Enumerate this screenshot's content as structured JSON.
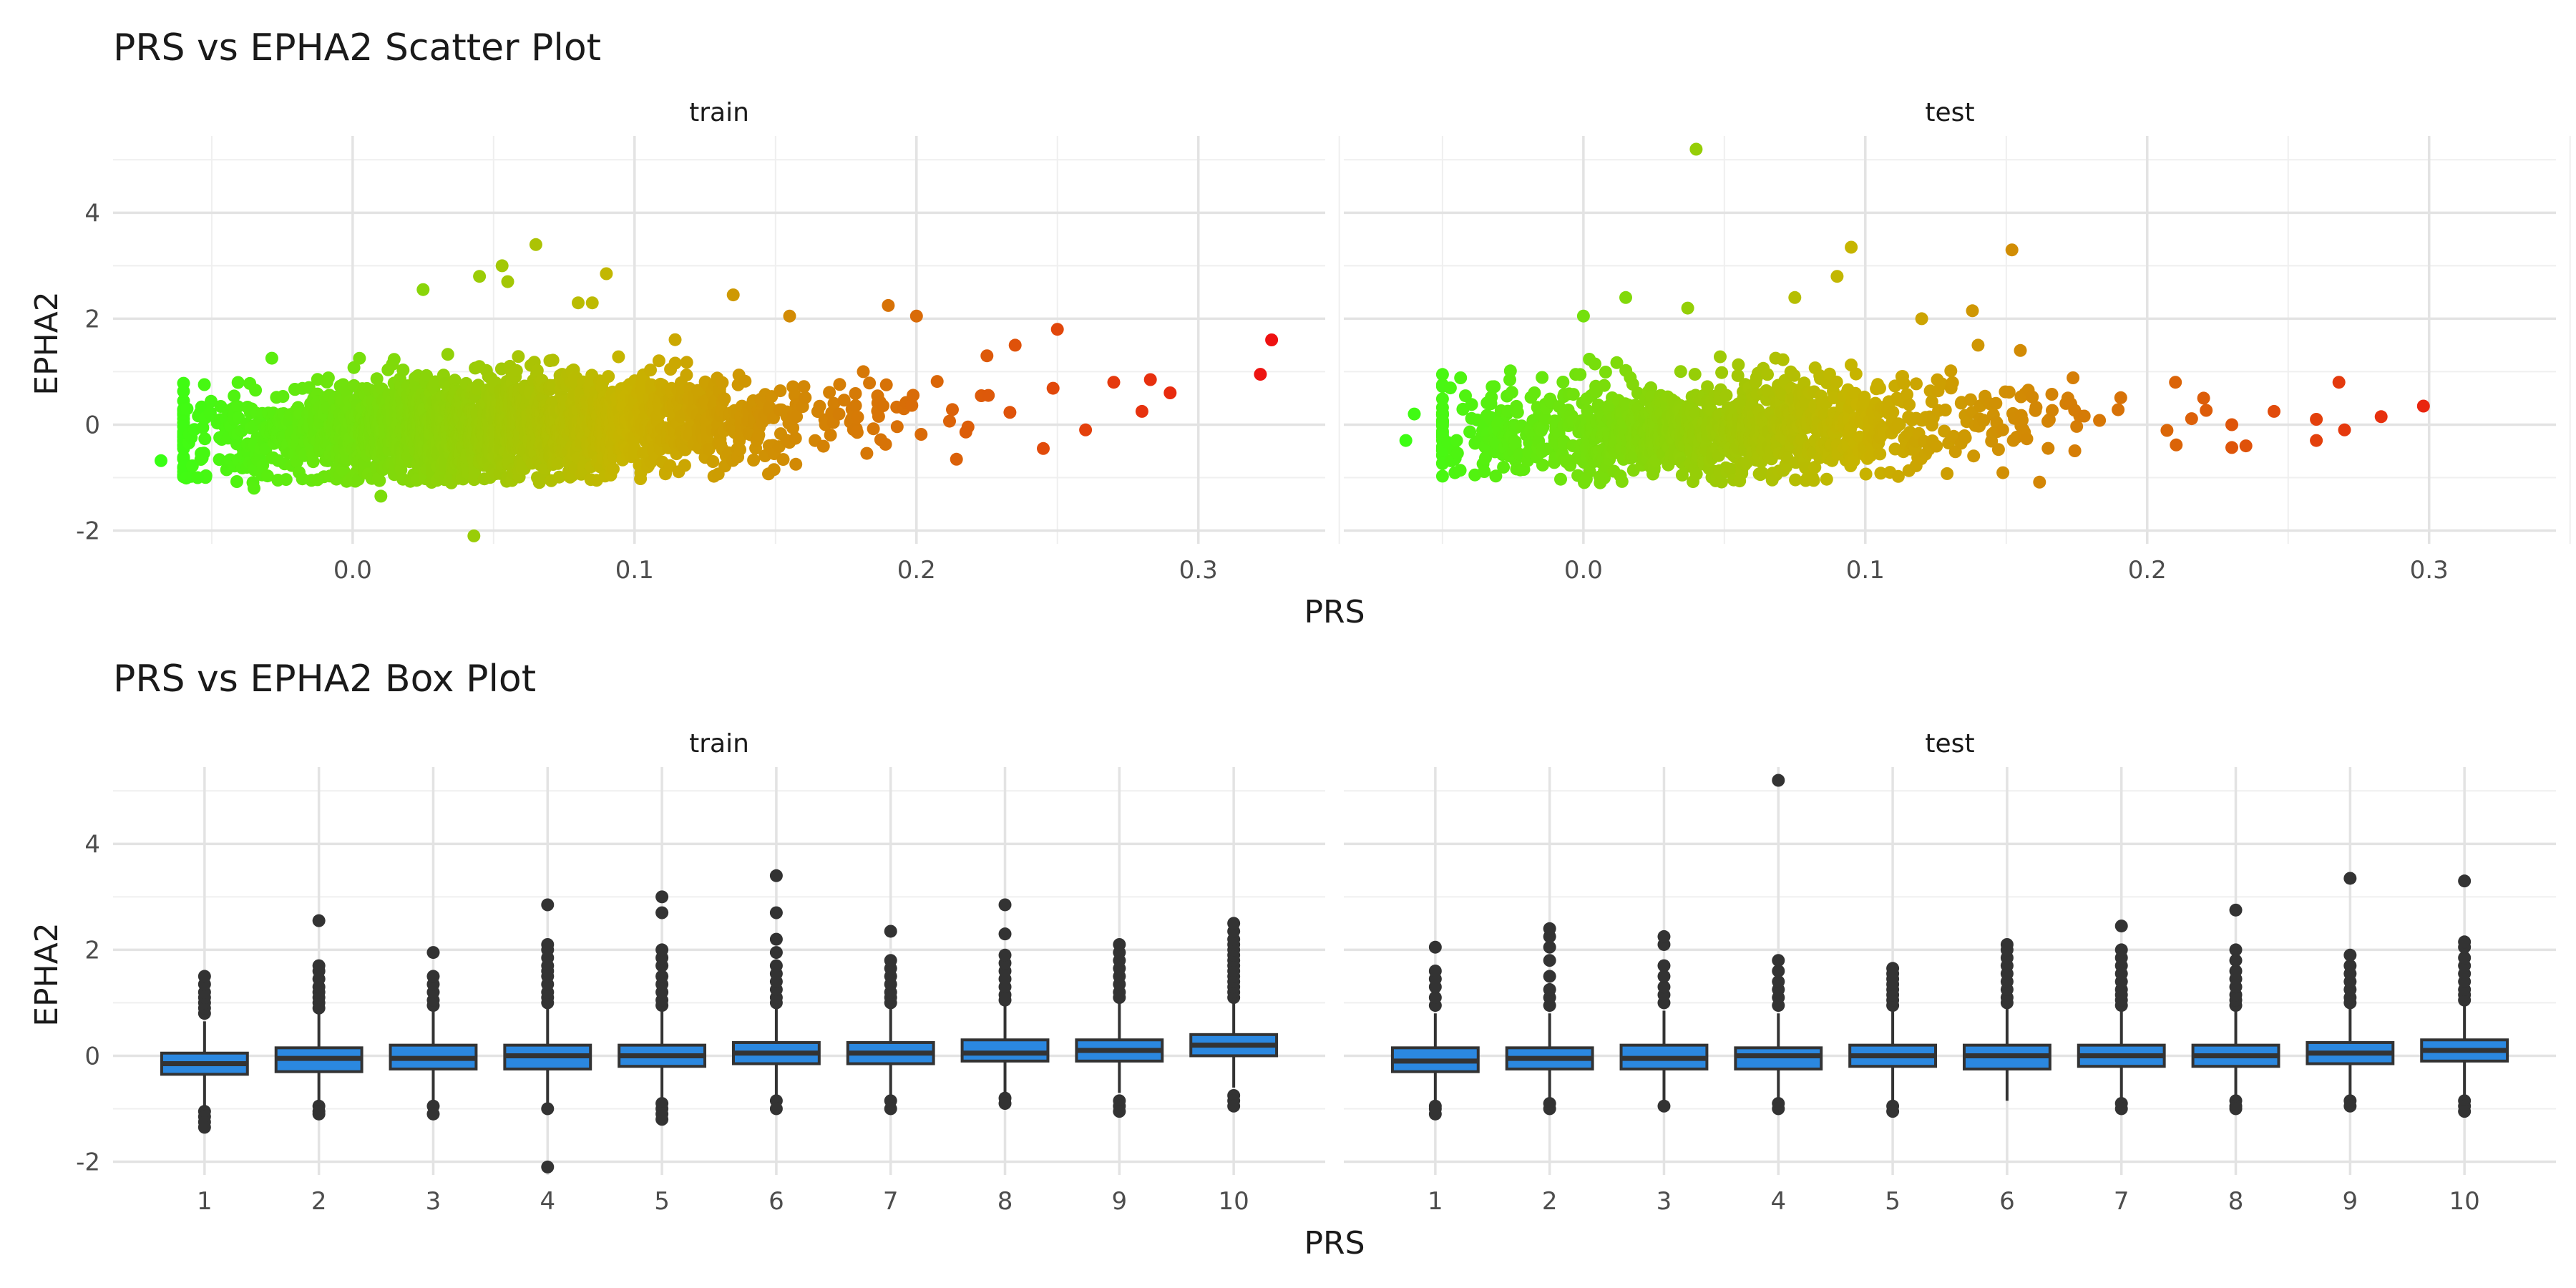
{
  "chart_data": [
    {
      "type": "scatter",
      "title": "PRS vs EPHA2 Scatter Plot",
      "xlabel": "PRS",
      "ylabel": "EPHA2",
      "facets": [
        "train",
        "test"
      ],
      "xlim": [
        -0.085,
        0.345
      ],
      "ylim": [
        -2.25,
        5.45
      ],
      "x_ticks": [
        "0.0",
        "0.1",
        "0.2",
        "0.3"
      ],
      "x_tick_values": [
        0.0,
        0.1,
        0.2,
        0.3
      ],
      "y_ticks": [
        "-2",
        "0",
        "2",
        "4"
      ],
      "y_tick_values": [
        -2,
        0,
        2,
        4
      ],
      "color_scale": {
        "low": "#39FF14",
        "mid": "#C8B400",
        "high": "#EE1111",
        "mapped_to": "PRS"
      },
      "grid": true,
      "legend": "none",
      "panels": {
        "train": {
          "cloud": {
            "n": 2600,
            "x_range": [
              -0.06,
              0.29
            ],
            "y_center_at_x0": -0.1,
            "y_center_slope": 1.4,
            "spread": 0.45
          },
          "points": [
            [
              -0.068,
              -0.68
            ],
            [
              -0.055,
              -1.0
            ],
            [
              -0.035,
              -1.2
            ],
            [
              0.01,
              -1.35
            ],
            [
              0.043,
              -2.1
            ],
            [
              0.025,
              2.55
            ],
            [
              0.045,
              2.8
            ],
            [
              0.053,
              3.0
            ],
            [
              0.055,
              2.7
            ],
            [
              0.065,
              3.4
            ],
            [
              0.08,
              2.3
            ],
            [
              0.085,
              2.3
            ],
            [
              0.09,
              2.85
            ],
            [
              0.135,
              2.45
            ],
            [
              0.155,
              2.05
            ],
            [
              0.19,
              2.25
            ],
            [
              0.2,
              2.05
            ],
            [
              0.225,
              1.3
            ],
            [
              0.235,
              1.5
            ],
            [
              0.25,
              1.8
            ],
            [
              0.245,
              -0.45
            ],
            [
              0.26,
              -0.1
            ],
            [
              0.27,
              0.8
            ],
            [
              0.28,
              0.25
            ],
            [
              0.283,
              0.85
            ],
            [
              0.29,
              0.6
            ],
            [
              0.322,
              0.95
            ],
            [
              0.326,
              1.6
            ]
          ]
        },
        "test": {
          "cloud": {
            "n": 1300,
            "x_range": [
              -0.05,
              0.23
            ],
            "y_center_at_x0": -0.1,
            "y_center_slope": 1.2,
            "spread": 0.45
          },
          "points": [
            [
              -0.06,
              0.2
            ],
            [
              -0.063,
              -0.3
            ],
            [
              -0.045,
              -0.3
            ],
            [
              0.0,
              2.05
            ],
            [
              0.015,
              2.4
            ],
            [
              0.04,
              5.2
            ],
            [
              0.037,
              2.2
            ],
            [
              0.095,
              3.35
            ],
            [
              0.09,
              2.8
            ],
            [
              0.152,
              3.3
            ],
            [
              0.138,
              2.15
            ],
            [
              0.12,
              2.0
            ],
            [
              0.14,
              1.5
            ],
            [
              0.155,
              1.4
            ],
            [
              0.075,
              2.4
            ],
            [
              0.21,
              0.8
            ],
            [
              0.22,
              0.5
            ],
            [
              0.235,
              -0.4
            ],
            [
              0.245,
              0.25
            ],
            [
              0.26,
              0.1
            ],
            [
              0.26,
              -0.3
            ],
            [
              0.268,
              0.8
            ],
            [
              0.27,
              -0.1
            ],
            [
              0.283,
              0.15
            ],
            [
              0.298,
              0.35
            ]
          ]
        }
      }
    },
    {
      "type": "box",
      "title": "PRS vs EPHA2 Box Plot",
      "xlabel": "PRS",
      "ylabel": "EPHA2",
      "facets": [
        "train",
        "test"
      ],
      "categories": [
        "1",
        "2",
        "3",
        "4",
        "5",
        "6",
        "7",
        "8",
        "9",
        "10"
      ],
      "ylim": [
        -2.25,
        5.45
      ],
      "y_ticks": [
        "-2",
        "0",
        "2",
        "4"
      ],
      "y_tick_values": [
        -2,
        0,
        2,
        4
      ],
      "box_fill": "#2B88E0",
      "box_line": "#333333",
      "grid": true,
      "panels": {
        "train": [
          {
            "q1": -0.35,
            "median": -0.15,
            "q3": 0.05,
            "whisker_low": -0.95,
            "whisker_high": 0.65,
            "outliers": [
              0.8,
              0.9,
              1.0,
              1.1,
              1.2,
              1.35,
              1.5,
              -1.05,
              -1.15,
              -1.25,
              -1.35
            ]
          },
          {
            "q1": -0.3,
            "median": -0.05,
            "q3": 0.15,
            "whisker_low": -0.9,
            "whisker_high": 0.8,
            "outliers": [
              0.9,
              1.0,
              1.1,
              1.2,
              1.3,
              1.45,
              1.6,
              1.7,
              2.55,
              -0.95,
              -1.05,
              -1.1
            ]
          },
          {
            "q1": -0.25,
            "median": -0.05,
            "q3": 0.2,
            "whisker_low": -0.9,
            "whisker_high": 0.85,
            "outliers": [
              0.95,
              1.05,
              1.2,
              1.35,
              1.5,
              1.95,
              -0.95,
              -1.1
            ]
          },
          {
            "q1": -0.25,
            "median": 0.0,
            "q3": 0.2,
            "whisker_low": -0.9,
            "whisker_high": 0.9,
            "outliers": [
              1.0,
              1.1,
              1.2,
              1.35,
              1.5,
              1.6,
              1.7,
              1.85,
              2.0,
              2.1,
              2.85,
              -1.0,
              -2.1
            ]
          },
          {
            "q1": -0.2,
            "median": 0.0,
            "q3": 0.2,
            "whisker_low": -0.85,
            "whisker_high": 0.85,
            "outliers": [
              0.95,
              1.05,
              1.2,
              1.35,
              1.5,
              1.7,
              1.85,
              2.0,
              2.7,
              3.0,
              -0.9,
              -1.0,
              -1.1,
              -1.2
            ]
          },
          {
            "q1": -0.15,
            "median": 0.05,
            "q3": 0.25,
            "whisker_low": -0.8,
            "whisker_high": 0.9,
            "outliers": [
              1.0,
              1.1,
              1.25,
              1.4,
              1.55,
              1.7,
              1.95,
              2.2,
              2.7,
              3.4,
              -0.85,
              -1.0
            ]
          },
          {
            "q1": -0.15,
            "median": 0.05,
            "q3": 0.25,
            "whisker_low": -0.8,
            "whisker_high": 0.9,
            "outliers": [
              1.0,
              1.1,
              1.2,
              1.35,
              1.5,
              1.65,
              1.8,
              2.35,
              -0.85,
              -1.0
            ]
          },
          {
            "q1": -0.1,
            "median": 0.05,
            "q3": 0.3,
            "whisker_low": -0.75,
            "whisker_high": 0.95,
            "outliers": [
              1.05,
              1.15,
              1.3,
              1.45,
              1.6,
              1.75,
              1.9,
              2.3,
              2.85,
              -0.8,
              -0.9
            ]
          },
          {
            "q1": -0.1,
            "median": 0.1,
            "q3": 0.3,
            "whisker_low": -0.7,
            "whisker_high": 1.0,
            "outliers": [
              1.1,
              1.2,
              1.35,
              1.5,
              1.65,
              1.8,
              1.95,
              2.1,
              -0.85,
              -0.95,
              -1.05
            ]
          },
          {
            "q1": 0.0,
            "median": 0.2,
            "q3": 0.4,
            "whisker_low": -0.6,
            "whisker_high": 1.0,
            "outliers": [
              1.1,
              1.2,
              1.3,
              1.4,
              1.5,
              1.6,
              1.7,
              1.8,
              1.9,
              2.0,
              2.1,
              2.2,
              2.35,
              2.5,
              -0.75,
              -0.85,
              -0.95
            ]
          }
        ],
        "test": [
          {
            "q1": -0.3,
            "median": -0.1,
            "q3": 0.15,
            "whisker_low": -0.9,
            "whisker_high": 0.8,
            "outliers": [
              0.95,
              1.1,
              1.3,
              1.45,
              1.6,
              2.05,
              -0.95,
              -1.0,
              -1.1
            ]
          },
          {
            "q1": -0.25,
            "median": -0.05,
            "q3": 0.15,
            "whisker_low": -0.85,
            "whisker_high": 0.8,
            "outliers": [
              0.95,
              1.1,
              1.25,
              1.5,
              1.8,
              2.05,
              2.25,
              2.4,
              -0.9,
              -1.0
            ]
          },
          {
            "q1": -0.25,
            "median": -0.05,
            "q3": 0.2,
            "whisker_low": -0.9,
            "whisker_high": 0.85,
            "outliers": [
              1.0,
              1.15,
              1.3,
              1.5,
              1.7,
              2.1,
              2.25,
              -0.95
            ]
          },
          {
            "q1": -0.25,
            "median": 0.0,
            "q3": 0.15,
            "whisker_low": -0.85,
            "whisker_high": 0.8,
            "outliers": [
              0.95,
              1.1,
              1.25,
              1.4,
              1.6,
              1.8,
              5.2,
              -0.9,
              -1.0
            ]
          },
          {
            "q1": -0.2,
            "median": 0.0,
            "q3": 0.2,
            "whisker_low": -0.85,
            "whisker_high": 0.85,
            "outliers": [
              0.95,
              1.05,
              1.15,
              1.25,
              1.35,
              1.45,
              1.55,
              1.65,
              -0.95,
              -1.05
            ]
          },
          {
            "q1": -0.25,
            "median": 0.0,
            "q3": 0.2,
            "whisker_low": -0.85,
            "whisker_high": 0.9,
            "outliers": [
              1.0,
              1.1,
              1.25,
              1.4,
              1.55,
              1.7,
              1.85,
              2.0,
              2.1
            ]
          },
          {
            "q1": -0.2,
            "median": 0.0,
            "q3": 0.2,
            "whisker_low": -0.8,
            "whisker_high": 0.85,
            "outliers": [
              0.95,
              1.05,
              1.15,
              1.25,
              1.4,
              1.55,
              1.7,
              1.85,
              2.0,
              2.45,
              -0.9,
              -1.0
            ]
          },
          {
            "q1": -0.2,
            "median": 0.0,
            "q3": 0.2,
            "whisker_low": -0.8,
            "whisker_high": 0.85,
            "outliers": [
              0.95,
              1.05,
              1.15,
              1.3,
              1.45,
              1.6,
              1.8,
              2.0,
              2.75,
              -0.85,
              -0.95,
              -1.0
            ]
          },
          {
            "q1": -0.15,
            "median": 0.05,
            "q3": 0.25,
            "whisker_low": -0.8,
            "whisker_high": 0.9,
            "outliers": [
              1.0,
              1.1,
              1.25,
              1.4,
              1.55,
              1.7,
              1.9,
              3.35,
              -0.85,
              -0.95
            ]
          },
          {
            "q1": -0.1,
            "median": 0.1,
            "q3": 0.3,
            "whisker_low": -0.75,
            "whisker_high": 0.95,
            "outliers": [
              1.05,
              1.15,
              1.25,
              1.4,
              1.55,
              1.7,
              1.85,
              2.05,
              2.15,
              3.3,
              -0.85,
              -0.95,
              -1.05
            ]
          }
        ]
      }
    }
  ]
}
